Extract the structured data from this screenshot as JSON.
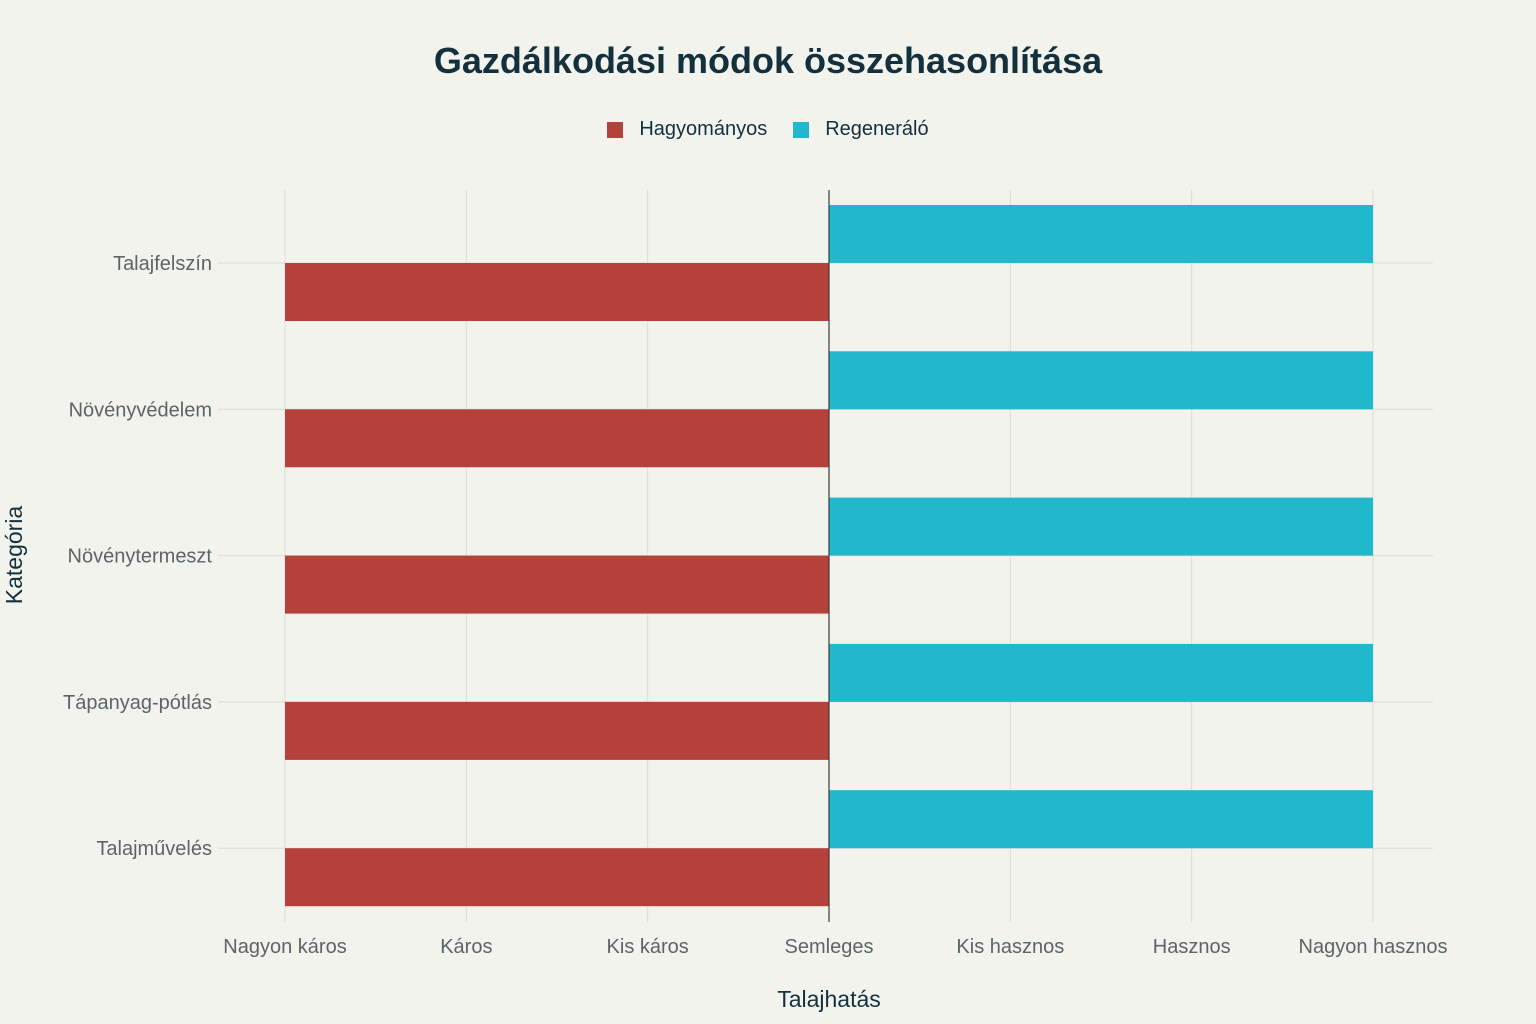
{
  "chart_data": {
    "type": "bar",
    "orientation": "horizontal",
    "title": "Gazdálkodási módok összehasonlítása",
    "xlabel": "Talajhatás",
    "ylabel": "Kategória",
    "categories": [
      "Talajfelszín",
      "Növényvédelem",
      "Növénytermeszt",
      "Tápanyag-pótlás",
      "Talajművelés"
    ],
    "x_ticks": [
      "Nagyon káros",
      "Káros",
      "Kis káros",
      "Semleges",
      "Kis hasznos",
      "Hasznos",
      "Nagyon hasznos"
    ],
    "xlim": [
      -3,
      3
    ],
    "baseline": 0,
    "series": [
      {
        "name": "Hagyományos",
        "color": "#b5413d",
        "values": [
          -3,
          -3,
          -3,
          -3,
          -3
        ]
      },
      {
        "name": "Regeneráló",
        "color": "#21b7cc",
        "values": [
          3,
          3,
          3,
          3,
          3
        ]
      }
    ],
    "grid": true,
    "legend_position": "top-center"
  }
}
